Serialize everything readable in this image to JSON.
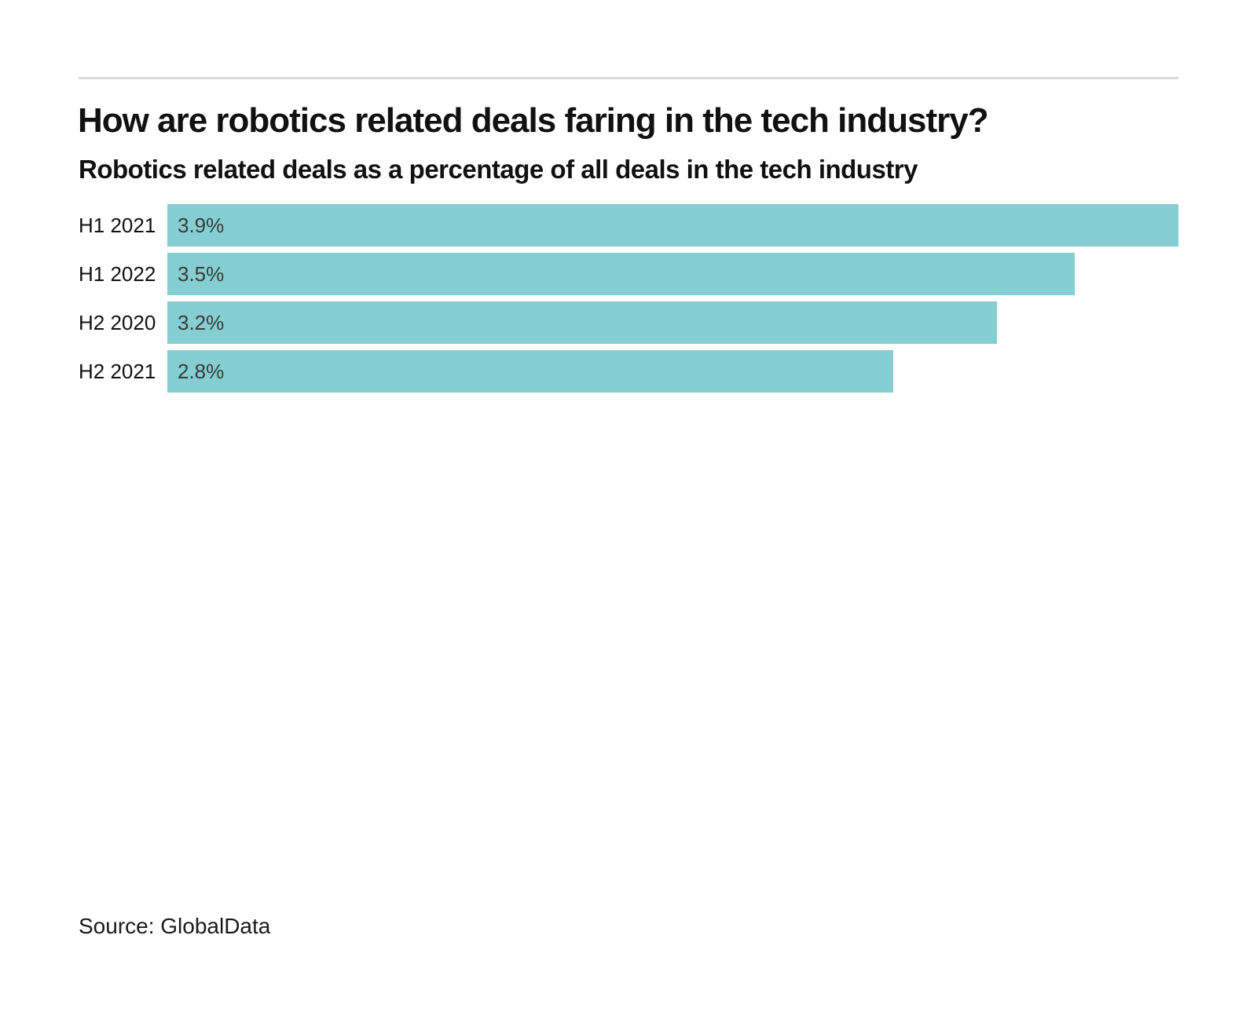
{
  "header": {
    "title": "How are robotics related deals faring in the tech industry?",
    "subtitle": "Robotics related deals as a percentage of all deals in the tech industry"
  },
  "footer": {
    "source": "Source: GlobalData"
  },
  "colors": {
    "bar": "#85CED1",
    "rule": "#d9d9d9",
    "value_label": "#3a3a3a",
    "text": "#111111"
  },
  "chart_data": {
    "type": "bar",
    "orientation": "horizontal",
    "title": "How are robotics related deals faring in the tech industry?",
    "subtitle": "Robotics related deals as a percentage of all deals in the tech industry",
    "categories": [
      "H1 2021",
      "H1 2022",
      "H2 2020",
      "H2 2021"
    ],
    "values": [
      3.9,
      3.5,
      3.2,
      2.8
    ],
    "value_labels": [
      "3.9%",
      "3.5%",
      "3.2%",
      "2.8%"
    ],
    "xlabel": "",
    "ylabel": "",
    "xlim": [
      0,
      3.9
    ],
    "grid": false,
    "legend": false,
    "bar_color": "#85CED1",
    "source": "Source: GlobalData"
  }
}
